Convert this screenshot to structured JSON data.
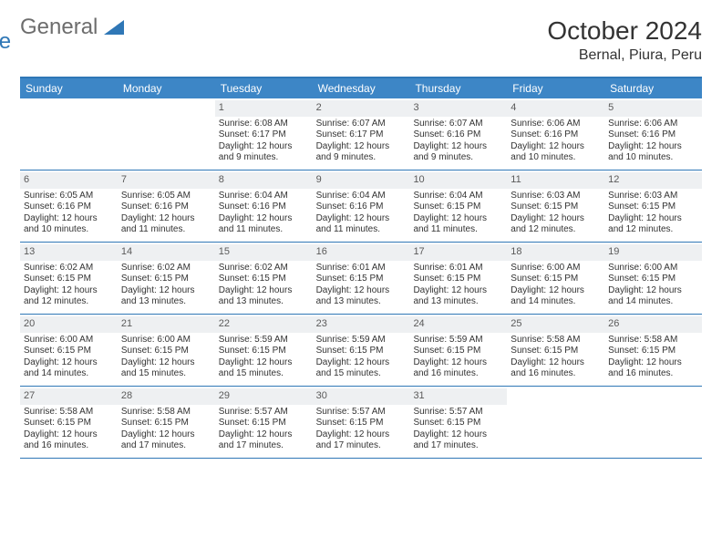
{
  "brand": {
    "part1": "General",
    "part2": "Blue"
  },
  "title": "October 2024",
  "location": "Bernal, Piura, Peru",
  "colors": {
    "header_bg": "#3d86c6",
    "border": "#2f77b6",
    "daynum_bg": "#eef0f2",
    "text": "#333333",
    "logo_gray": "#6d6d6d",
    "logo_blue": "#2f77b6",
    "background": "#ffffff"
  },
  "day_headers": [
    "Sunday",
    "Monday",
    "Tuesday",
    "Wednesday",
    "Thursday",
    "Friday",
    "Saturday"
  ],
  "weeks": [
    [
      null,
      null,
      {
        "n": "1",
        "sr": "Sunrise: 6:08 AM",
        "ss": "Sunset: 6:17 PM",
        "d1": "Daylight: 12 hours",
        "d2": "and 9 minutes."
      },
      {
        "n": "2",
        "sr": "Sunrise: 6:07 AM",
        "ss": "Sunset: 6:17 PM",
        "d1": "Daylight: 12 hours",
        "d2": "and 9 minutes."
      },
      {
        "n": "3",
        "sr": "Sunrise: 6:07 AM",
        "ss": "Sunset: 6:16 PM",
        "d1": "Daylight: 12 hours",
        "d2": "and 9 minutes."
      },
      {
        "n": "4",
        "sr": "Sunrise: 6:06 AM",
        "ss": "Sunset: 6:16 PM",
        "d1": "Daylight: 12 hours",
        "d2": "and 10 minutes."
      },
      {
        "n": "5",
        "sr": "Sunrise: 6:06 AM",
        "ss": "Sunset: 6:16 PM",
        "d1": "Daylight: 12 hours",
        "d2": "and 10 minutes."
      }
    ],
    [
      {
        "n": "6",
        "sr": "Sunrise: 6:05 AM",
        "ss": "Sunset: 6:16 PM",
        "d1": "Daylight: 12 hours",
        "d2": "and 10 minutes."
      },
      {
        "n": "7",
        "sr": "Sunrise: 6:05 AM",
        "ss": "Sunset: 6:16 PM",
        "d1": "Daylight: 12 hours",
        "d2": "and 11 minutes."
      },
      {
        "n": "8",
        "sr": "Sunrise: 6:04 AM",
        "ss": "Sunset: 6:16 PM",
        "d1": "Daylight: 12 hours",
        "d2": "and 11 minutes."
      },
      {
        "n": "9",
        "sr": "Sunrise: 6:04 AM",
        "ss": "Sunset: 6:16 PM",
        "d1": "Daylight: 12 hours",
        "d2": "and 11 minutes."
      },
      {
        "n": "10",
        "sr": "Sunrise: 6:04 AM",
        "ss": "Sunset: 6:15 PM",
        "d1": "Daylight: 12 hours",
        "d2": "and 11 minutes."
      },
      {
        "n": "11",
        "sr": "Sunrise: 6:03 AM",
        "ss": "Sunset: 6:15 PM",
        "d1": "Daylight: 12 hours",
        "d2": "and 12 minutes."
      },
      {
        "n": "12",
        "sr": "Sunrise: 6:03 AM",
        "ss": "Sunset: 6:15 PM",
        "d1": "Daylight: 12 hours",
        "d2": "and 12 minutes."
      }
    ],
    [
      {
        "n": "13",
        "sr": "Sunrise: 6:02 AM",
        "ss": "Sunset: 6:15 PM",
        "d1": "Daylight: 12 hours",
        "d2": "and 12 minutes."
      },
      {
        "n": "14",
        "sr": "Sunrise: 6:02 AM",
        "ss": "Sunset: 6:15 PM",
        "d1": "Daylight: 12 hours",
        "d2": "and 13 minutes."
      },
      {
        "n": "15",
        "sr": "Sunrise: 6:02 AM",
        "ss": "Sunset: 6:15 PM",
        "d1": "Daylight: 12 hours",
        "d2": "and 13 minutes."
      },
      {
        "n": "16",
        "sr": "Sunrise: 6:01 AM",
        "ss": "Sunset: 6:15 PM",
        "d1": "Daylight: 12 hours",
        "d2": "and 13 minutes."
      },
      {
        "n": "17",
        "sr": "Sunrise: 6:01 AM",
        "ss": "Sunset: 6:15 PM",
        "d1": "Daylight: 12 hours",
        "d2": "and 13 minutes."
      },
      {
        "n": "18",
        "sr": "Sunrise: 6:00 AM",
        "ss": "Sunset: 6:15 PM",
        "d1": "Daylight: 12 hours",
        "d2": "and 14 minutes."
      },
      {
        "n": "19",
        "sr": "Sunrise: 6:00 AM",
        "ss": "Sunset: 6:15 PM",
        "d1": "Daylight: 12 hours",
        "d2": "and 14 minutes."
      }
    ],
    [
      {
        "n": "20",
        "sr": "Sunrise: 6:00 AM",
        "ss": "Sunset: 6:15 PM",
        "d1": "Daylight: 12 hours",
        "d2": "and 14 minutes."
      },
      {
        "n": "21",
        "sr": "Sunrise: 6:00 AM",
        "ss": "Sunset: 6:15 PM",
        "d1": "Daylight: 12 hours",
        "d2": "and 15 minutes."
      },
      {
        "n": "22",
        "sr": "Sunrise: 5:59 AM",
        "ss": "Sunset: 6:15 PM",
        "d1": "Daylight: 12 hours",
        "d2": "and 15 minutes."
      },
      {
        "n": "23",
        "sr": "Sunrise: 5:59 AM",
        "ss": "Sunset: 6:15 PM",
        "d1": "Daylight: 12 hours",
        "d2": "and 15 minutes."
      },
      {
        "n": "24",
        "sr": "Sunrise: 5:59 AM",
        "ss": "Sunset: 6:15 PM",
        "d1": "Daylight: 12 hours",
        "d2": "and 16 minutes."
      },
      {
        "n": "25",
        "sr": "Sunrise: 5:58 AM",
        "ss": "Sunset: 6:15 PM",
        "d1": "Daylight: 12 hours",
        "d2": "and 16 minutes."
      },
      {
        "n": "26",
        "sr": "Sunrise: 5:58 AM",
        "ss": "Sunset: 6:15 PM",
        "d1": "Daylight: 12 hours",
        "d2": "and 16 minutes."
      }
    ],
    [
      {
        "n": "27",
        "sr": "Sunrise: 5:58 AM",
        "ss": "Sunset: 6:15 PM",
        "d1": "Daylight: 12 hours",
        "d2": "and 16 minutes."
      },
      {
        "n": "28",
        "sr": "Sunrise: 5:58 AM",
        "ss": "Sunset: 6:15 PM",
        "d1": "Daylight: 12 hours",
        "d2": "and 17 minutes."
      },
      {
        "n": "29",
        "sr": "Sunrise: 5:57 AM",
        "ss": "Sunset: 6:15 PM",
        "d1": "Daylight: 12 hours",
        "d2": "and 17 minutes."
      },
      {
        "n": "30",
        "sr": "Sunrise: 5:57 AM",
        "ss": "Sunset: 6:15 PM",
        "d1": "Daylight: 12 hours",
        "d2": "and 17 minutes."
      },
      {
        "n": "31",
        "sr": "Sunrise: 5:57 AM",
        "ss": "Sunset: 6:15 PM",
        "d1": "Daylight: 12 hours",
        "d2": "and 17 minutes."
      },
      null,
      null
    ]
  ]
}
